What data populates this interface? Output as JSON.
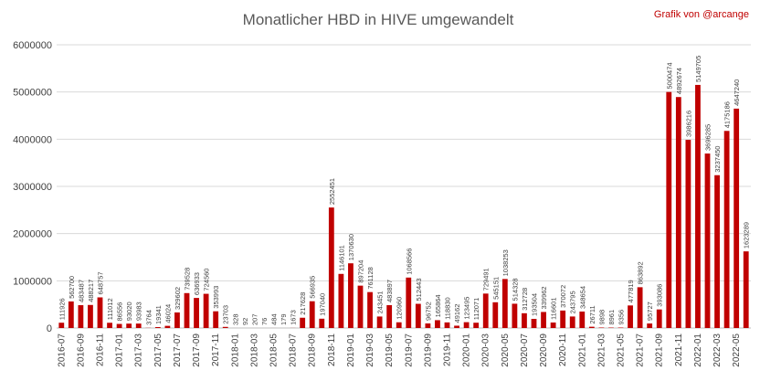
{
  "chart_data": {
    "type": "bar",
    "title": "Monatlicher HBD in HIVE umgewandelt",
    "credit": "Grafik von @arcange",
    "xlabel": "",
    "ylabel": "",
    "ylim": [
      0,
      6000000
    ],
    "yticks": [
      "0",
      "1000000",
      "2000000",
      "3000000",
      "4000000",
      "5000000",
      "6000000"
    ],
    "grid": "horizontal",
    "colors": {
      "bar": "#c00000",
      "credit": "#c00000",
      "title": "#595959",
      "grid": "#d9d9d9"
    },
    "categories": [
      "2016-07",
      "2016-08",
      "2016-09",
      "2016-10",
      "2016-11",
      "2016-12",
      "2017-01",
      "2017-02",
      "2017-03",
      "2017-04",
      "2017-05",
      "2017-06",
      "2017-07",
      "2017-08",
      "2017-09",
      "2017-10",
      "2017-11",
      "2017-12",
      "2018-01",
      "2018-02",
      "2018-03",
      "2018-04",
      "2018-05",
      "2018-06",
      "2018-07",
      "2018-08",
      "2018-09",
      "2018-10",
      "2018-11",
      "2018-12",
      "2019-01",
      "2019-02",
      "2019-03",
      "2019-04",
      "2019-05",
      "2019-06",
      "2019-07",
      "2019-08",
      "2019-09",
      "2019-10",
      "2019-11",
      "2019-12",
      "2020-01",
      "2020-02",
      "2020-03",
      "2020-04",
      "2020-05",
      "2020-06",
      "2020-07",
      "2020-08",
      "2020-09",
      "2020-10",
      "2020-11",
      "2020-12",
      "2021-01",
      "2021-02",
      "2021-03",
      "2021-04",
      "2021-05",
      "2021-06",
      "2021-07",
      "2021-08",
      "2021-09",
      "2021-10",
      "2021-11",
      "2021-12",
      "2022-01",
      "2022-02",
      "2022-03",
      "2022-04",
      "2022-05",
      "2022-06"
    ],
    "values": [
      111926,
      562700,
      483487,
      488217,
      648757,
      111012,
      86556,
      93020,
      93983,
      3764,
      19341,
      46024,
      329602,
      739528,
      636933,
      724560,
      353993,
      23703,
      328,
      92,
      207,
      76,
      484,
      179,
      1673,
      217628,
      566935,
      197040,
      2552451,
      1146101,
      1370630,
      897204,
      761128,
      243451,
      483897,
      120960,
      1068566,
      512443,
      96752,
      165864,
      118830,
      49162,
      123495,
      112071,
      729491,
      545151,
      1038253,
      514328,
      312728,
      193504,
      339962,
      116601,
      370072,
      243795,
      348654,
      26711,
      9898,
      8961,
      9356,
      477819,
      863892,
      95727,
      393086,
      5000474,
      4892674,
      3986216,
      5149705,
      3696285,
      3237450,
      4175186,
      4647240,
      1623289
    ],
    "value_labels": [
      "111926",
      "562700",
      "483487",
      "488217",
      "648757",
      "111012",
      "86556",
      "93020",
      "93983",
      "3764",
      "19341",
      "46024",
      "329602",
      "739528",
      "636933",
      "724560",
      "353993",
      "23703",
      "328",
      "92",
      "207",
      "76",
      "484",
      "179",
      "1673",
      "217628",
      "566935",
      "197040",
      "2552451",
      "1146101",
      "1370630",
      "897204",
      "761128",
      "243451",
      "483897",
      "120960",
      "1068566",
      "512443",
      "96752",
      "165864",
      "118830",
      "49162",
      "123495",
      "112071",
      "729491",
      "545151",
      "1038253",
      "514328",
      "312728",
      "193504",
      "339962",
      "116601",
      "370072",
      "243795",
      "348654",
      "26711",
      "9898",
      "8961",
      "9356",
      "477819",
      "863892",
      "95727",
      "393086",
      "5000474",
      "4892674",
      "3986216",
      "5149705",
      "3696285",
      "3237450",
      "4175186",
      "4647240",
      "1623289"
    ]
  }
}
